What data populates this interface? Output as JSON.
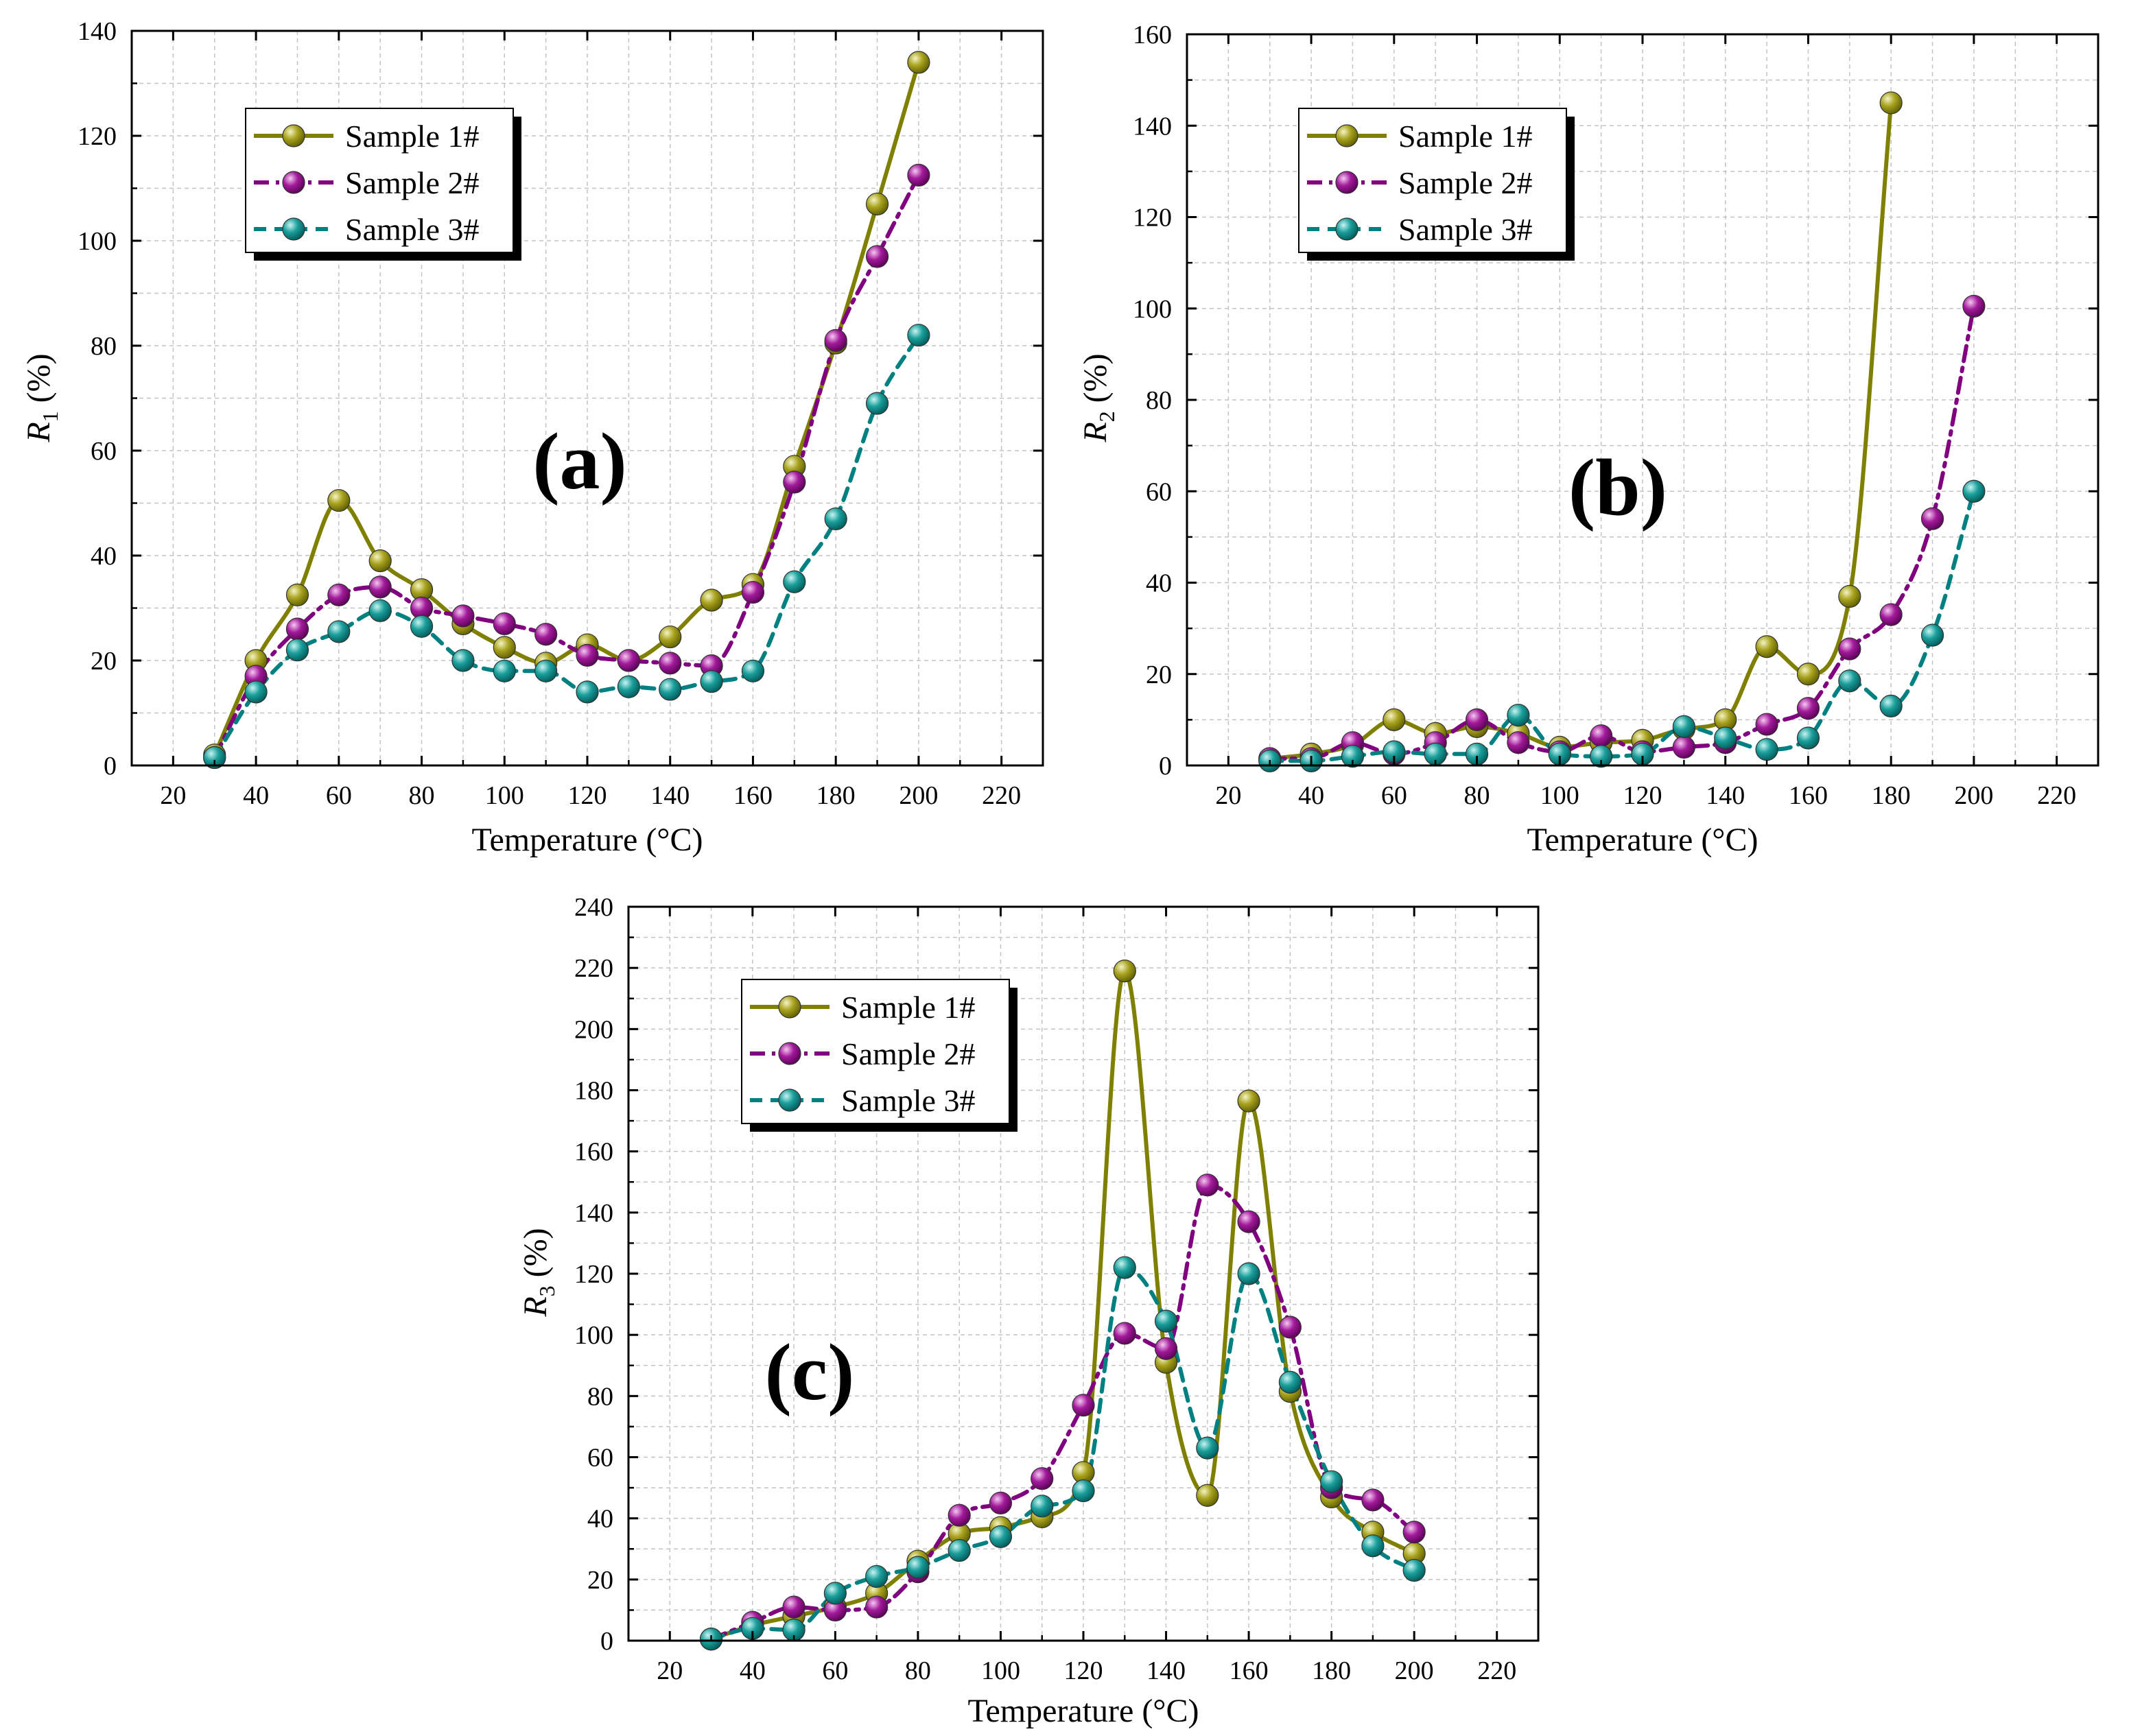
{
  "colors": {
    "sample1": "#808000",
    "sample2": "#800080",
    "sample3": "#008080"
  },
  "chart_data": [
    {
      "type": "line",
      "panel_label": "(a)",
      "xlabel": "Temperature (°C)",
      "ylabel_var": "R",
      "ylabel_sub": "1",
      "ylabel_unit": " (%)",
      "xlim": [
        10,
        230
      ],
      "xticks": [
        20,
        40,
        60,
        80,
        100,
        120,
        140,
        160,
        180,
        200,
        220
      ],
      "ylim": [
        0,
        140
      ],
      "yticks": [
        0,
        20,
        40,
        60,
        80,
        100,
        120,
        140
      ],
      "grid": true,
      "legend_position": "top-left",
      "x": [
        30,
        40,
        50,
        60,
        70,
        80,
        90,
        100,
        110,
        120,
        130,
        140,
        150,
        160,
        170,
        180,
        190,
        200
      ],
      "series": [
        {
          "name": "Sample 1#",
          "values": [
            2,
            20,
            32.5,
            50.5,
            39,
            33.5,
            27,
            22.5,
            19.5,
            23,
            20,
            24.5,
            31.5,
            34.5,
            57,
            80.5,
            107,
            134
          ]
        },
        {
          "name": "Sample 2#",
          "values": [
            1.5,
            17,
            26,
            32.5,
            34,
            30,
            28.5,
            27,
            25,
            21,
            20,
            19.5,
            19,
            33,
            54,
            81,
            97,
            112.5
          ]
        },
        {
          "name": "Sample 3#",
          "values": [
            1.5,
            14,
            22,
            25.5,
            29.5,
            26.5,
            20,
            18,
            18,
            14,
            15,
            14.5,
            16,
            18,
            35,
            47,
            69,
            82
          ]
        }
      ]
    },
    {
      "type": "line",
      "panel_label": "(b)",
      "xlabel": "Temperature (°C)",
      "ylabel_var": "R",
      "ylabel_sub": "2",
      "ylabel_unit": " (%)",
      "xlim": [
        10,
        230
      ],
      "xticks": [
        20,
        40,
        60,
        80,
        100,
        120,
        140,
        160,
        180,
        200,
        220
      ],
      "ylim": [
        0,
        160
      ],
      "yticks": [
        0,
        20,
        40,
        60,
        80,
        100,
        120,
        140,
        160
      ],
      "grid": true,
      "legend_position": "top-left",
      "series": [
        {
          "name": "Sample 1#",
          "x": [
            30,
            40,
            50,
            60,
            70,
            80,
            90,
            100,
            110,
            120,
            130,
            140,
            150,
            160,
            170,
            180
          ],
          "values": [
            1.5,
            2.5,
            4.5,
            10,
            7,
            8.5,
            7,
            4,
            5,
            5.5,
            8,
            10,
            26,
            20,
            37,
            145
          ]
        },
        {
          "name": "Sample 2#",
          "x": [
            30,
            40,
            50,
            60,
            70,
            80,
            90,
            100,
            110,
            120,
            130,
            140,
            150,
            160,
            170,
            180,
            190,
            200
          ],
          "values": [
            1.5,
            1.5,
            5,
            2.5,
            5,
            10,
            5,
            3,
            6.5,
            3,
            4,
            5,
            9,
            12.5,
            25.5,
            33,
            54,
            100.5
          ]
        },
        {
          "name": "Sample 3#",
          "x": [
            30,
            40,
            50,
            60,
            70,
            80,
            90,
            100,
            110,
            120,
            130,
            140,
            150,
            160,
            170,
            180,
            190,
            200
          ],
          "values": [
            1,
            1,
            2,
            3,
            2.5,
            2.5,
            11,
            2.5,
            2,
            2.5,
            8.5,
            6,
            3.5,
            6,
            18.5,
            13,
            28.5,
            60
          ]
        }
      ]
    },
    {
      "type": "line",
      "panel_label": "(c)",
      "xlabel": "Temperature (°C)",
      "ylabel_var": "R",
      "ylabel_sub": "3",
      "ylabel_unit": " (%)",
      "xlim": [
        10,
        230
      ],
      "xticks": [
        20,
        40,
        60,
        80,
        100,
        120,
        140,
        160,
        180,
        200,
        220
      ],
      "ylim": [
        0,
        240
      ],
      "yticks": [
        0,
        20,
        40,
        60,
        80,
        100,
        120,
        140,
        160,
        180,
        200,
        220,
        240
      ],
      "grid": true,
      "legend_position": "top-left",
      "x": [
        30,
        40,
        50,
        60,
        70,
        80,
        90,
        100,
        110,
        120,
        130,
        140,
        150,
        160,
        170,
        180,
        190,
        200
      ],
      "series": [
        {
          "name": "Sample 1#",
          "values": [
            0.5,
            5,
            8,
            11,
            15.5,
            26,
            35,
            37,
            40.5,
            55,
            219,
            91,
            47.5,
            176.5,
            81.5,
            47,
            35.5,
            28.5
          ]
        },
        {
          "name": "Sample 2#",
          "values": [
            0.5,
            6,
            11,
            10,
            11,
            22.5,
            41,
            45,
            53,
            77,
            100.5,
            95.5,
            149,
            137,
            102.5,
            50,
            46,
            35.5
          ]
        },
        {
          "name": "Sample 3#",
          "values": [
            0.5,
            4,
            3.5,
            15.5,
            21,
            24,
            29.5,
            34,
            44,
            49,
            122,
            104.5,
            63,
            120,
            84.5,
            52,
            31,
            23
          ]
        }
      ]
    }
  ]
}
